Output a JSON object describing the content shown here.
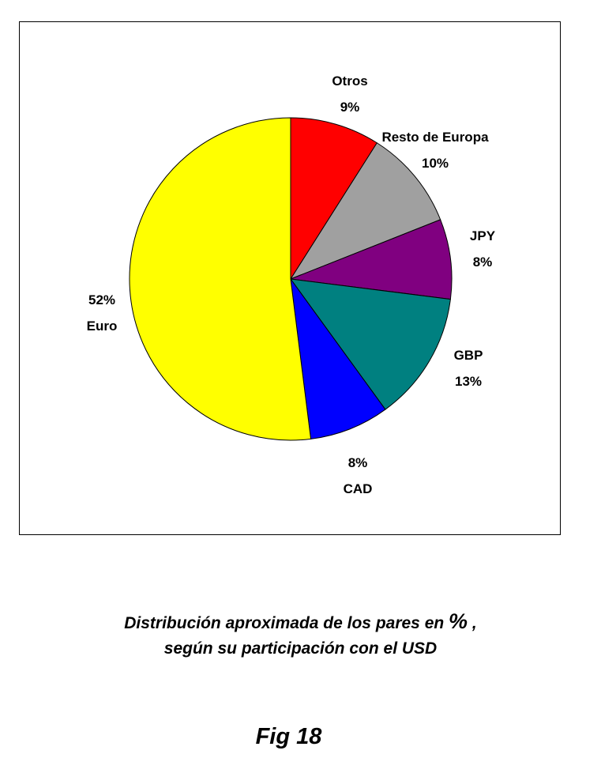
{
  "chart_data": {
    "type": "pie",
    "start_angle_deg": 0,
    "direction": "clockwise",
    "slices": [
      {
        "name": "Otros",
        "value": 9,
        "label": "9%",
        "color": "#FF0000"
      },
      {
        "name": "Resto de Europa",
        "value": 10,
        "label": "10%",
        "color": "#A0A0A0"
      },
      {
        "name": "JPY",
        "value": 8,
        "label": "8%",
        "color": "#800080"
      },
      {
        "name": "GBP",
        "value": 13,
        "label": "13%",
        "color": "#008080"
      },
      {
        "name": "CAD",
        "value": 8,
        "label": "8%",
        "color": "#0000FF"
      },
      {
        "name": "Euro",
        "value": 52,
        "label": "52%",
        "color": "#FFFF00"
      }
    ]
  },
  "caption": {
    "line1_prefix": "Distribución aproximada de los pares en",
    "line1_symbol": "%",
    "line1_suffix": ",",
    "line2": "según su participación con el USD"
  },
  "figure_label": "Fig 18"
}
